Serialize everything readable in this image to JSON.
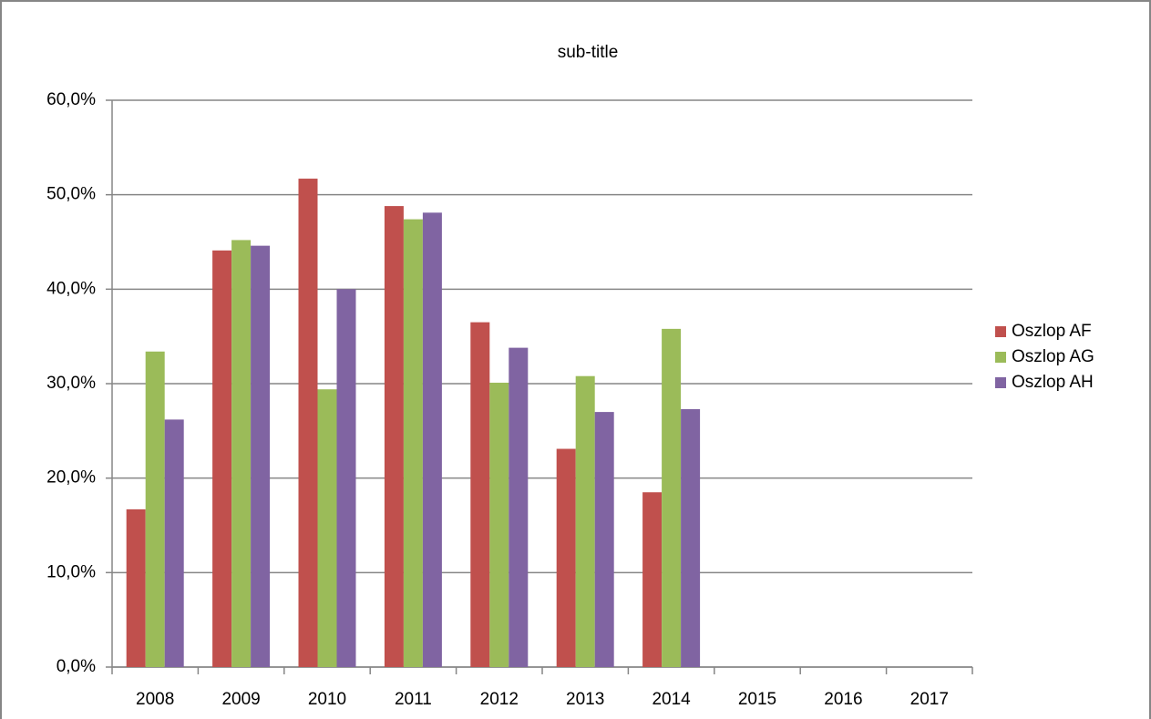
{
  "chart_data": {
    "type": "bar",
    "title": "sub-title",
    "categories": [
      "2008",
      "2009",
      "2010",
      "2011",
      "2012",
      "2013",
      "2014",
      "2015",
      "2016",
      "2017"
    ],
    "series": [
      {
        "name": "Oszlop AF",
        "color": "#c0504d",
        "values": [
          16.7,
          44.1,
          51.7,
          48.8,
          36.5,
          23.1,
          18.5,
          null,
          null,
          null
        ]
      },
      {
        "name": "Oszlop AG",
        "color": "#9bbb59",
        "values": [
          33.4,
          45.2,
          29.4,
          47.4,
          30.1,
          30.8,
          35.8,
          null,
          null,
          null
        ]
      },
      {
        "name": "Oszlop AH",
        "color": "#8064a2",
        "values": [
          26.2,
          44.6,
          40.0,
          48.1,
          33.8,
          27.0,
          27.3,
          null,
          null,
          null
        ]
      }
    ],
    "ylim": [
      0,
      60
    ],
    "yticks": [
      {
        "value": 0,
        "label": "0,0%"
      },
      {
        "value": 10,
        "label": "10,0%"
      },
      {
        "value": 20,
        "label": "20,0%"
      },
      {
        "value": 30,
        "label": "30,0%"
      },
      {
        "value": 40,
        "label": "40,0%"
      },
      {
        "value": 50,
        "label": "50,0%"
      },
      {
        "value": 60,
        "label": "60,0%"
      }
    ],
    "grid": true,
    "legend": "right"
  }
}
